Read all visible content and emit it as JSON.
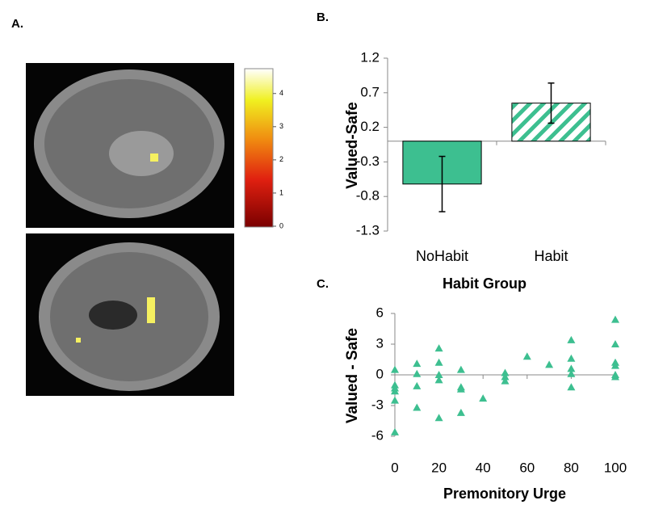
{
  "panels": [
    "A.",
    "B.",
    "C."
  ],
  "colorbar": {
    "range": [
      0,
      4.7
    ],
    "ticks": [
      0,
      1,
      2,
      3,
      4
    ]
  },
  "chart_data": [
    {
      "type": "bar",
      "ylabel": "Valued-Safe",
      "xlabel": "Habit Group",
      "categories": [
        "NoHabit",
        "Habit"
      ],
      "values": [
        -0.62,
        0.55
      ],
      "errors": [
        0.4,
        0.29
      ],
      "color": "#3dbf90",
      "hatched": [
        false,
        true
      ],
      "ylim": [
        -1.3,
        1.2
      ],
      "yticks": [
        -1.3,
        -0.8,
        -0.3,
        0.2,
        0.7,
        1.2
      ]
    },
    {
      "type": "scatter",
      "ylabel": "Valued - Safe",
      "xlabel": "Premonitory Urge",
      "color": "#3dbf90",
      "x": [
        0,
        0,
        0,
        0,
        0,
        0,
        10,
        10,
        10,
        10,
        20,
        20,
        20,
        20,
        20,
        30,
        30,
        30,
        30,
        40,
        50,
        50,
        50,
        60,
        70,
        80,
        80,
        80,
        80,
        80,
        100,
        100,
        100,
        100,
        100,
        100
      ],
      "values": [
        0.5,
        -1,
        -1.3,
        -1.6,
        -2.5,
        -5.6,
        1.1,
        0.1,
        -1.1,
        -3.2,
        2.6,
        1.2,
        0,
        -0.5,
        -4.2,
        0.5,
        -1.2,
        -1.4,
        -3.7,
        -2.3,
        0.2,
        -0.2,
        -0.6,
        1.8,
        1.0,
        3.4,
        1.6,
        0.6,
        0.1,
        -1.2,
        5.4,
        3.0,
        1.2,
        0.9,
        0,
        -0.2
      ],
      "xlim": [
        0,
        100
      ],
      "xticks": [
        0,
        20,
        40,
        60,
        80,
        100
      ],
      "ylim": [
        -6,
        6
      ],
      "yticks": [
        -6,
        -3,
        0,
        3,
        6
      ]
    }
  ]
}
